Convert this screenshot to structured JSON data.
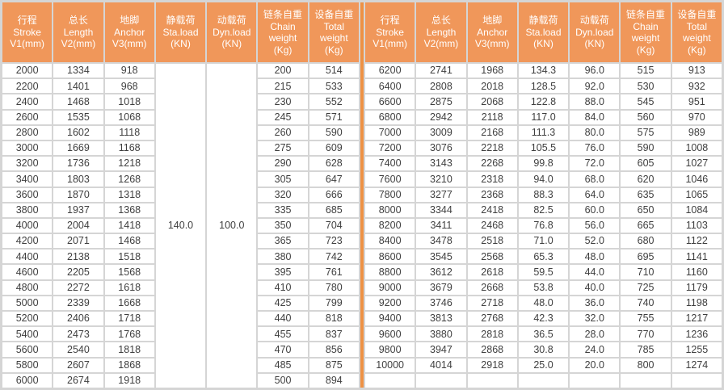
{
  "colors": {
    "header_bg": "#F0975A",
    "divider": "#EE9144",
    "grid_line": "#D5D5D5",
    "cell_bg": "#FFFFFF",
    "header_text": "#FFFFFF",
    "body_text": "#3F3F3F"
  },
  "chart_data": [
    {
      "type": "table",
      "name": "spec-table-left",
      "column_headers": [
        [
          "行程",
          "Stroke",
          "V1(mm)"
        ],
        [
          "总长",
          "Length",
          "V2(mm)"
        ],
        [
          "地脚",
          "Anchor",
          "V3(mm)"
        ],
        [
          "静载荷",
          "Sta.load",
          "(KN)"
        ],
        [
          "动载荷",
          "Dyn.load",
          "(KN)"
        ],
        [
          "链条自重",
          "Chain",
          "weight",
          "(Kg)"
        ],
        [
          "设备自重",
          "Total",
          "weight",
          "(Kg)"
        ]
      ],
      "rows": [
        [
          "2000",
          "1334",
          "918",
          "",
          "",
          "200",
          "514"
        ],
        [
          "2200",
          "1401",
          "968",
          "",
          "",
          "215",
          "533"
        ],
        [
          "2400",
          "1468",
          "1018",
          "",
          "",
          "230",
          "552"
        ],
        [
          "2600",
          "1535",
          "1068",
          "",
          "",
          "245",
          "571"
        ],
        [
          "2800",
          "1602",
          "1118",
          "",
          "",
          "260",
          "590"
        ],
        [
          "3000",
          "1669",
          "1168",
          "",
          "",
          "275",
          "609"
        ],
        [
          "3200",
          "1736",
          "1218",
          "",
          "",
          "290",
          "628"
        ],
        [
          "3400",
          "1803",
          "1268",
          "",
          "",
          "305",
          "647"
        ],
        [
          "3600",
          "1870",
          "1318",
          "",
          "",
          "320",
          "666"
        ],
        [
          "3800",
          "1937",
          "1368",
          "",
          "",
          "335",
          "685"
        ],
        [
          "4000",
          "2004",
          "1418",
          "",
          "",
          "350",
          "704"
        ],
        [
          "4200",
          "2071",
          "1468",
          "",
          "",
          "365",
          "723"
        ],
        [
          "4400",
          "2138",
          "1518",
          "",
          "",
          "380",
          "742"
        ],
        [
          "4600",
          "2205",
          "1568",
          "",
          "",
          "395",
          "761"
        ],
        [
          "4800",
          "2272",
          "1618",
          "",
          "",
          "410",
          "780"
        ],
        [
          "5000",
          "2339",
          "1668",
          "",
          "",
          "425",
          "799"
        ],
        [
          "5200",
          "2406",
          "1718",
          "",
          "",
          "440",
          "818"
        ],
        [
          "5400",
          "2473",
          "1768",
          "",
          "",
          "455",
          "837"
        ],
        [
          "5600",
          "2540",
          "1818",
          "",
          "",
          "470",
          "856"
        ],
        [
          "5800",
          "2607",
          "1868",
          "",
          "",
          "485",
          "875"
        ],
        [
          "6000",
          "2674",
          "1918",
          "",
          "",
          "500",
          "894"
        ]
      ],
      "merged_cells": [
        {
          "column_index": 3,
          "spans_all_rows": true,
          "value": "140.0"
        },
        {
          "column_index": 4,
          "spans_all_rows": true,
          "value": "100.0"
        }
      ]
    },
    {
      "type": "table",
      "name": "spec-table-right",
      "column_headers": [
        [
          "行程",
          "Stroke",
          "V1(mm)"
        ],
        [
          "总长",
          "Length",
          "V2(mm)"
        ],
        [
          "地脚",
          "Anchor",
          "V3(mm)"
        ],
        [
          "静载荷",
          "Sta.load",
          "(KN)"
        ],
        [
          "动载荷",
          "Dyn.load",
          "(KN)"
        ],
        [
          "链条自重",
          "Chain",
          "weight",
          "(Kg)"
        ],
        [
          "设备自重",
          "Total",
          "weight",
          "(Kg)"
        ]
      ],
      "rows": [
        [
          "6200",
          "2741",
          "1968",
          "134.3",
          "96.0",
          "515",
          "913"
        ],
        [
          "6400",
          "2808",
          "2018",
          "128.5",
          "92.0",
          "530",
          "932"
        ],
        [
          "6600",
          "2875",
          "2068",
          "122.8",
          "88.0",
          "545",
          "951"
        ],
        [
          "6800",
          "2942",
          "2118",
          "117.0",
          "84.0",
          "560",
          "970"
        ],
        [
          "7000",
          "3009",
          "2168",
          "111.3",
          "80.0",
          "575",
          "989"
        ],
        [
          "7200",
          "3076",
          "2218",
          "105.5",
          "76.0",
          "590",
          "1008"
        ],
        [
          "7400",
          "3143",
          "2268",
          "99.8",
          "72.0",
          "605",
          "1027"
        ],
        [
          "7600",
          "3210",
          "2318",
          "94.0",
          "68.0",
          "620",
          "1046"
        ],
        [
          "7800",
          "3277",
          "2368",
          "88.3",
          "64.0",
          "635",
          "1065"
        ],
        [
          "8000",
          "3344",
          "2418",
          "82.5",
          "60.0",
          "650",
          "1084"
        ],
        [
          "8200",
          "3411",
          "2468",
          "76.8",
          "56.0",
          "665",
          "1103"
        ],
        [
          "8400",
          "3478",
          "2518",
          "71.0",
          "52.0",
          "680",
          "1122"
        ],
        [
          "8600",
          "3545",
          "2568",
          "65.3",
          "48.0",
          "695",
          "1141"
        ],
        [
          "8800",
          "3612",
          "2618",
          "59.5",
          "44.0",
          "710",
          "1160"
        ],
        [
          "9000",
          "3679",
          "2668",
          "53.8",
          "40.0",
          "725",
          "1179"
        ],
        [
          "9200",
          "3746",
          "2718",
          "48.0",
          "36.0",
          "740",
          "1198"
        ],
        [
          "9400",
          "3813",
          "2768",
          "42.3",
          "32.0",
          "755",
          "1217"
        ],
        [
          "9600",
          "3880",
          "2818",
          "36.5",
          "28.0",
          "770",
          "1236"
        ],
        [
          "9800",
          "3947",
          "2868",
          "30.8",
          "24.0",
          "785",
          "1255"
        ],
        [
          "10000",
          "4014",
          "2918",
          "25.0",
          "20.0",
          "800",
          "1274"
        ],
        [
          "",
          "",
          "",
          "",
          "",
          "",
          ""
        ]
      ],
      "merged_cells": []
    }
  ]
}
